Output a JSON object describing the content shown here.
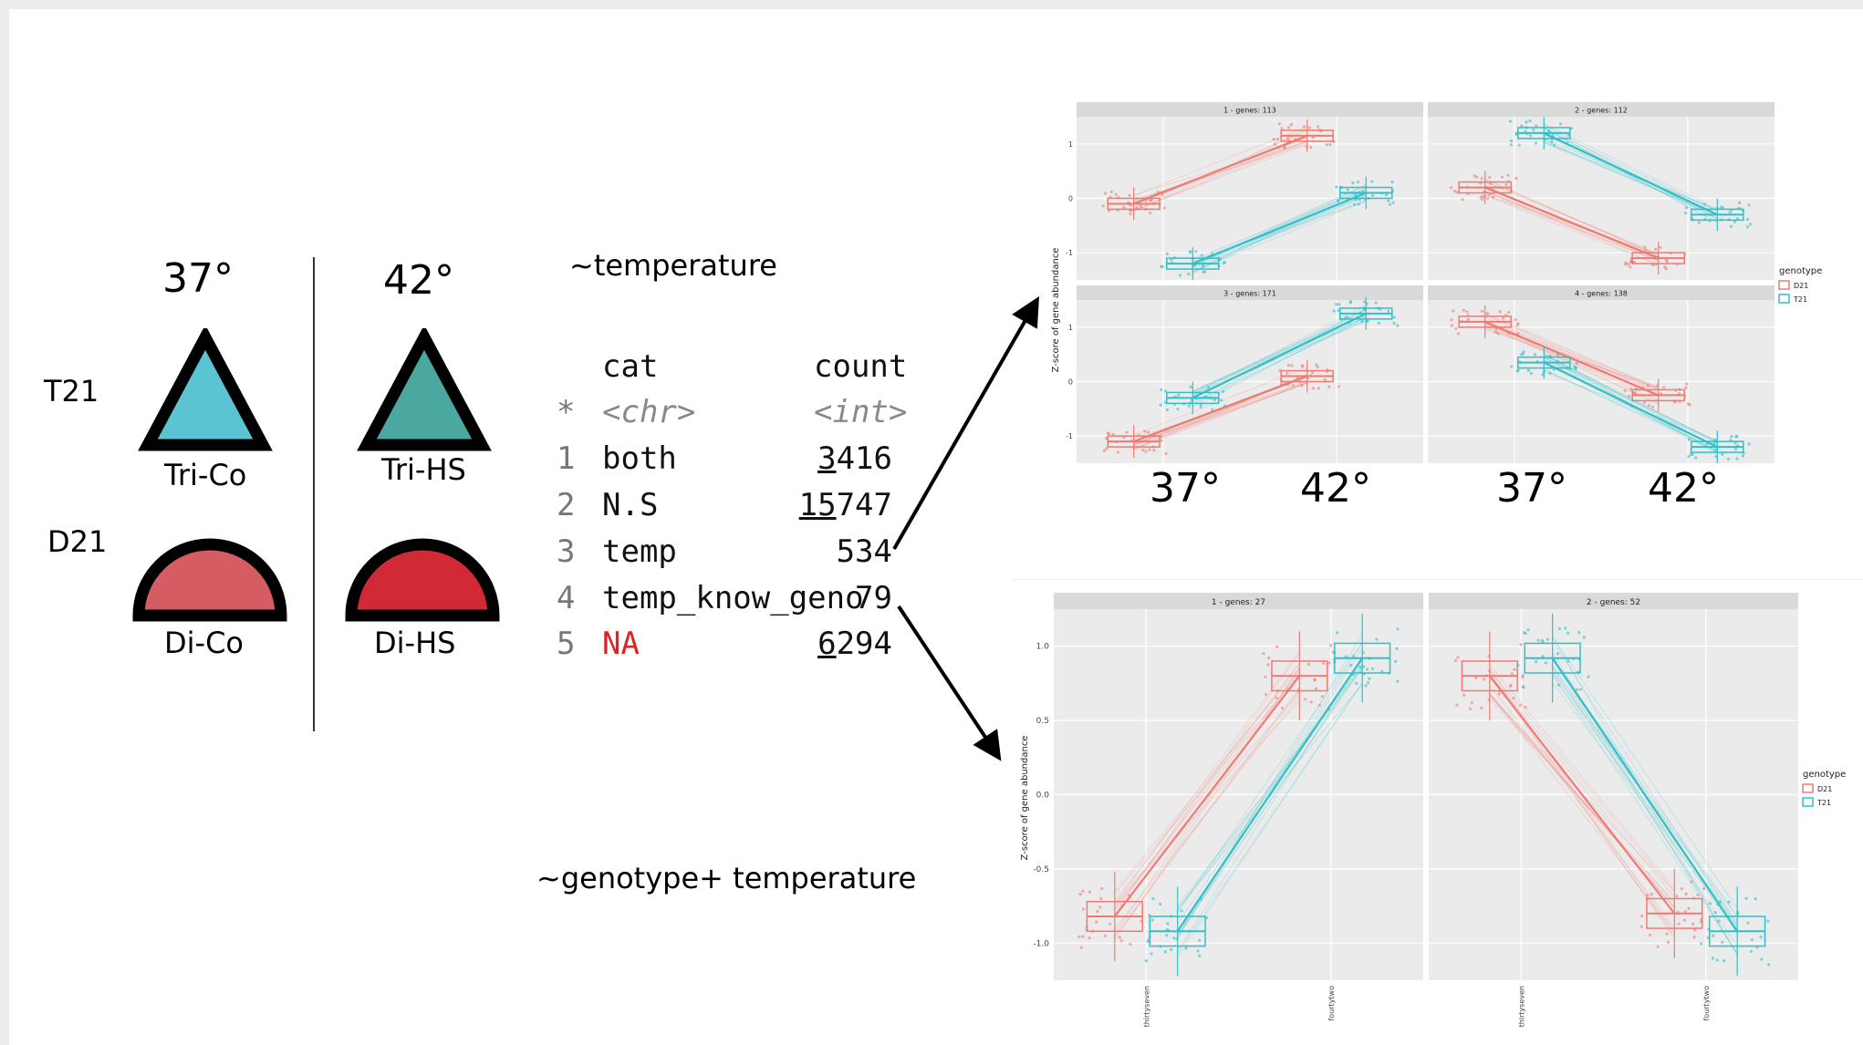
{
  "legend_diagram": {
    "temp_low": "37°",
    "temp_high": "42°",
    "row_t21": "T21",
    "row_d21": "D21",
    "tri_co": "Tri-Co",
    "tri_hs": "Tri-HS",
    "di_co": "Di-Co",
    "di_hs": "Di-HS",
    "colors": {
      "tri_co": "#5bc4d3",
      "tri_hs": "#4aa8a0",
      "di_co": "#d45c62",
      "di_hs": "#d12a36"
    }
  },
  "formulas": {
    "top": "~temperature",
    "bottom": "~genotype+ temperature"
  },
  "table": {
    "headers": [
      "cat",
      "count"
    ],
    "types": [
      "<chr>",
      "<int>"
    ],
    "type_marker": "*",
    "rows": [
      {
        "idx": "1",
        "cat": "both",
        "count_hl": "3",
        "count_rest": "416"
      },
      {
        "idx": "2",
        "cat": "N.S",
        "count_hl": "15",
        "count_rest": "747"
      },
      {
        "idx": "3",
        "cat": "temp",
        "count_hl": "",
        "count_rest": "534"
      },
      {
        "idx": "4",
        "cat": "temp_know_geno",
        "count_hl": "",
        "count_rest": "79"
      },
      {
        "idx": "5",
        "cat": "NA",
        "count_hl": "6",
        "count_rest": "294"
      }
    ]
  },
  "top_figure": {
    "ylabel": "Z-score of gene abundance",
    "panel_titles": [
      "1 - genes: 113",
      "2 - genes: 112",
      "3 - genes: 171",
      "4 - genes: 138"
    ],
    "y_ticks": [
      "1",
      "0",
      "-1"
    ],
    "overlay_left": "37°",
    "overlay_right": "42°",
    "legend_title": "genotype",
    "legend_items": [
      "D21",
      "T21"
    ],
    "colors": {
      "D21": "#f07a72",
      "T21": "#2fc0c8"
    }
  },
  "bottom_figure": {
    "ylabel": "Z-score of gene abundance",
    "panel_titles": [
      "1 - genes: 27",
      "2 - genes: 52"
    ],
    "y_ticks": [
      "1.0",
      "0.5",
      "0.0",
      "-0.5",
      "-1.0"
    ],
    "x_ticks": [
      "thirtyseven",
      "fourtytwo"
    ],
    "legend_title": "genotype",
    "legend_items": [
      "D21",
      "T21"
    ]
  },
  "chart_data": [
    {
      "type": "box",
      "title": "",
      "xlabel": "",
      "ylabel": "Z-score of gene abundance",
      "ylim": [
        -1.5,
        1.5
      ],
      "categories": [
        "37°",
        "42°"
      ],
      "panels": [
        {
          "title": "1 - genes: 113",
          "series": [
            {
              "name": "D21",
              "values": [
                -0.1,
                1.15
              ]
            },
            {
              "name": "T21",
              "values": [
                -1.2,
                0.1
              ]
            }
          ]
        },
        {
          "title": "2 - genes: 112",
          "series": [
            {
              "name": "D21",
              "values": [
                0.2,
                -1.1
              ]
            },
            {
              "name": "T21",
              "values": [
                1.2,
                -0.3
              ]
            }
          ]
        },
        {
          "title": "3 - genes: 171",
          "series": [
            {
              "name": "D21",
              "values": [
                -1.1,
                0.1
              ]
            },
            {
              "name": "T21",
              "values": [
                -0.3,
                1.25
              ]
            }
          ]
        },
        {
          "title": "4 - genes: 138",
          "series": [
            {
              "name": "D21",
              "values": [
                1.1,
                -0.25
              ]
            },
            {
              "name": "T21",
              "values": [
                0.35,
                -1.2
              ]
            }
          ]
        }
      ]
    },
    {
      "type": "box",
      "title": "",
      "xlabel": "",
      "ylabel": "Z-score of gene abundance",
      "ylim": [
        -1.25,
        1.25
      ],
      "categories": [
        "thirtyseven",
        "fourtytwo"
      ],
      "panels": [
        {
          "title": "1 - genes: 27",
          "series": [
            {
              "name": "D21",
              "values": [
                -0.82,
                0.8
              ]
            },
            {
              "name": "T21",
              "values": [
                -0.92,
                0.92
              ]
            }
          ]
        },
        {
          "title": "2 - genes: 52",
          "series": [
            {
              "name": "D21",
              "values": [
                0.8,
                -0.8
              ]
            },
            {
              "name": "T21",
              "values": [
                0.92,
                -0.92
              ]
            }
          ]
        }
      ]
    }
  ]
}
